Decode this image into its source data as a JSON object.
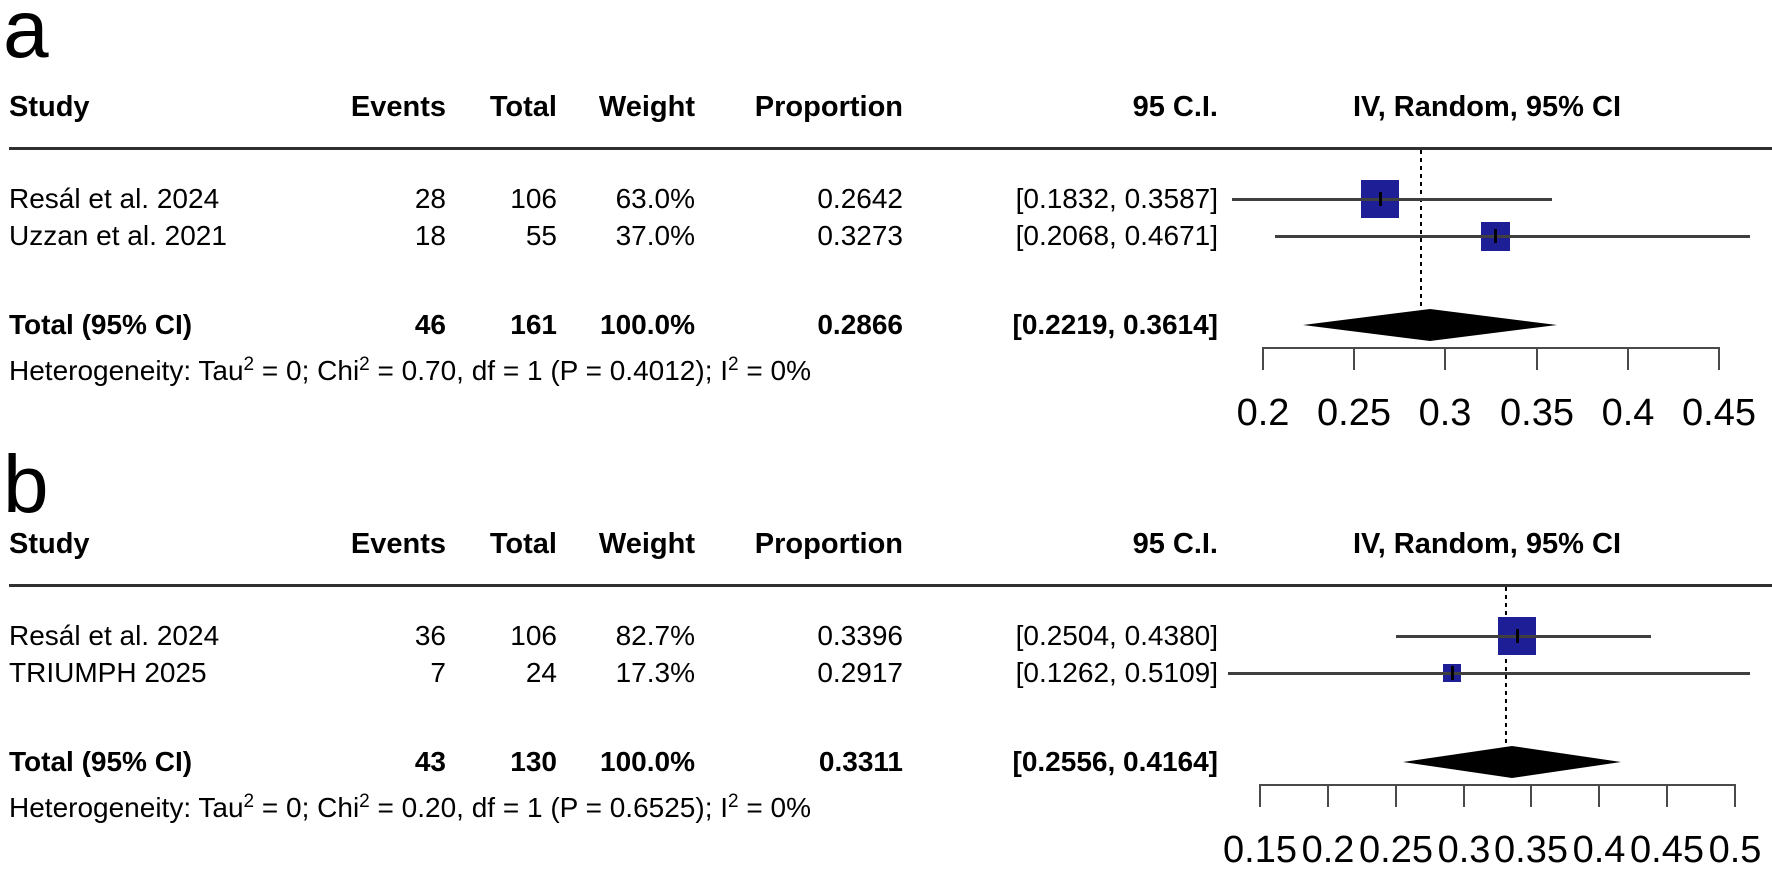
{
  "figure": {
    "colors": {
      "background": "#ffffff",
      "text": "#000000",
      "square": "#1e1e96",
      "diamond": "#000000",
      "ci_line": "#3f3f3f",
      "rule": "#303030",
      "axis": "#4a4a4a",
      "dashed_line": "#000000"
    }
  },
  "chart_data": [
    {
      "type": "forest",
      "panel_label": "a",
      "column_headers": {
        "study": "Study",
        "events": "Events",
        "total": "Total",
        "weight": "Weight",
        "proportion": "Proportion",
        "ci": "95 C.I.",
        "plot": "IV, Random, 95% CI"
      },
      "studies": [
        {
          "study": "Resál et al. 2024",
          "events": "28",
          "total": "106",
          "weight": "63.0%",
          "proportion": "0.2642",
          "ci_text": "[0.1832, 0.3587]",
          "est": 0.2642,
          "lo": 0.1832,
          "hi": 0.3587,
          "weight_pct": 63.0
        },
        {
          "study": "Uzzan et al. 2021",
          "events": "18",
          "total": "55",
          "weight": "37.0%",
          "proportion": "0.3273",
          "ci_text": "[0.2068, 0.4671]",
          "est": 0.3273,
          "lo": 0.2068,
          "hi": 0.4671,
          "weight_pct": 37.0
        }
      ],
      "total": {
        "label": "Total (95% CI)",
        "events": "46",
        "total": "161",
        "weight": "100.0%",
        "proportion": "0.2866",
        "ci_text": "[0.2219, 0.3614]",
        "est": 0.2866,
        "lo": 0.2219,
        "hi": 0.3614
      },
      "heterogeneity_parts": [
        {
          "text": "Heterogeneity: Tau"
        },
        {
          "text": "2",
          "sup": true
        },
        {
          "text": " = 0; Chi"
        },
        {
          "text": "2",
          "sup": true
        },
        {
          "text": " = 0.70, df = 1 (P = 0.4012); I"
        },
        {
          "text": "2",
          "sup": true
        },
        {
          "text": " = 0%"
        }
      ],
      "axis": {
        "min": 0.2,
        "max": 0.45,
        "ticks": [
          0.2,
          0.25,
          0.3,
          0.35,
          0.4,
          0.45
        ],
        "tick_labels": [
          "0.2",
          "0.25",
          "0.3",
          "0.35",
          "0.4",
          "0.45"
        ]
      }
    },
    {
      "type": "forest",
      "panel_label": "b",
      "column_headers": {
        "study": "Study",
        "events": "Events",
        "total": "Total",
        "weight": "Weight",
        "proportion": "Proportion",
        "ci": "95 C.I.",
        "plot": "IV, Random, 95% CI"
      },
      "studies": [
        {
          "study": "Resál et al. 2024",
          "events": "36",
          "total": "106",
          "weight": "82.7%",
          "proportion": "0.3396",
          "ci_text": "[0.2504, 0.4380]",
          "est": 0.3396,
          "lo": 0.2504,
          "hi": 0.438,
          "weight_pct": 82.7
        },
        {
          "study": "TRIUMPH 2025",
          "events": "7",
          "total": "24",
          "weight": "17.3%",
          "proportion": "0.2917",
          "ci_text": "[0.1262, 0.5109]",
          "est": 0.2917,
          "lo": 0.1262,
          "hi": 0.5109,
          "weight_pct": 17.3
        }
      ],
      "total": {
        "label": "Total (95% CI)",
        "events": "43",
        "total": "130",
        "weight": "100.0%",
        "proportion": "0.3311",
        "ci_text": "[0.2556, 0.4164]",
        "est": 0.3311,
        "lo": 0.2556,
        "hi": 0.4164
      },
      "heterogeneity_parts": [
        {
          "text": "Heterogeneity: Tau"
        },
        {
          "text": "2",
          "sup": true
        },
        {
          "text": " = 0; Chi"
        },
        {
          "text": "2",
          "sup": true
        },
        {
          "text": " = 0.20, df = 1 (P = 0.6525); I"
        },
        {
          "text": "2",
          "sup": true
        },
        {
          "text": " = 0%"
        }
      ],
      "axis": {
        "min": 0.15,
        "max": 0.5,
        "ticks": [
          0.15,
          0.2,
          0.25,
          0.3,
          0.35,
          0.4,
          0.45,
          0.5
        ],
        "tick_labels": [
          "0.15",
          "0.2",
          "0.25",
          "0.3",
          "0.35",
          "0.4",
          "0.45",
          "0.5"
        ]
      }
    }
  ]
}
